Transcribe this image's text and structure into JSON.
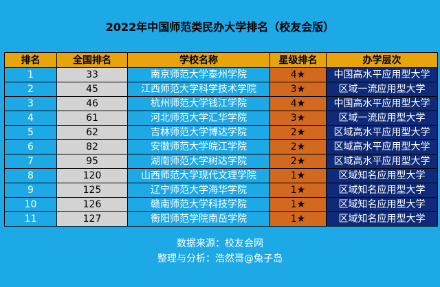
{
  "title": "2022年中国师范类民办大学排名（校友会版）",
  "headers": [
    "排名",
    "全国排名",
    "学校名称",
    "星级排名",
    "办学层次"
  ],
  "rows": [
    {
      "rank": "1",
      "national": "33",
      "school": "南京师范大学泰州学院",
      "stars": "4★",
      "level": "中国高水平应用型大学"
    },
    {
      "rank": "2",
      "national": "45",
      "school": "江西师范大学科学技术学院",
      "stars": "3★",
      "level": "区域一流应用型大学"
    },
    {
      "rank": "3",
      "national": "46",
      "school": "杭州师范大学钱江学院",
      "stars": "4★",
      "level": "中国高水平应用型大学"
    },
    {
      "rank": "4",
      "national": "61",
      "school": "河北师范大学汇华学院",
      "stars": "3★",
      "level": "区域一流应用型大学"
    },
    {
      "rank": "5",
      "national": "62",
      "school": "吉林师范大学博达学院",
      "stars": "2★",
      "level": "区域高水平应用型大学"
    },
    {
      "rank": "6",
      "national": "82",
      "school": "安徽师范大学皖江学院",
      "stars": "2★",
      "level": "区域高水平应用型大学"
    },
    {
      "rank": "7",
      "national": "95",
      "school": "湖南师范大学树达学院",
      "stars": "2★",
      "level": "区域高水平应用型大学"
    },
    {
      "rank": "8",
      "national": "120",
      "school": "山西师范大学现代文理学院",
      "stars": "1★",
      "level": "区域知名应用型大学"
    },
    {
      "rank": "9",
      "national": "125",
      "school": "辽宁师范大学海华学院",
      "stars": "1★",
      "level": "区域知名应用型大学"
    },
    {
      "rank": "10",
      "national": "126",
      "school": "赣南师范大学科技学院",
      "stars": "1★",
      "level": "区域知名应用型大学"
    },
    {
      "rank": "11",
      "national": "127",
      "school": "衡阳师范学院南岳学院",
      "stars": "1★",
      "level": "区域知名应用型大学"
    }
  ],
  "footer": {
    "source": "数据来源：校友会网",
    "analysis": "整理与分析：浩然哥@兔子岛"
  },
  "colors": {
    "background": "#1da9e6",
    "header": "#e7a40b",
    "national_col": "#d3d3d3",
    "star_col": "#d2691e",
    "level_col": "#0e2a78"
  }
}
